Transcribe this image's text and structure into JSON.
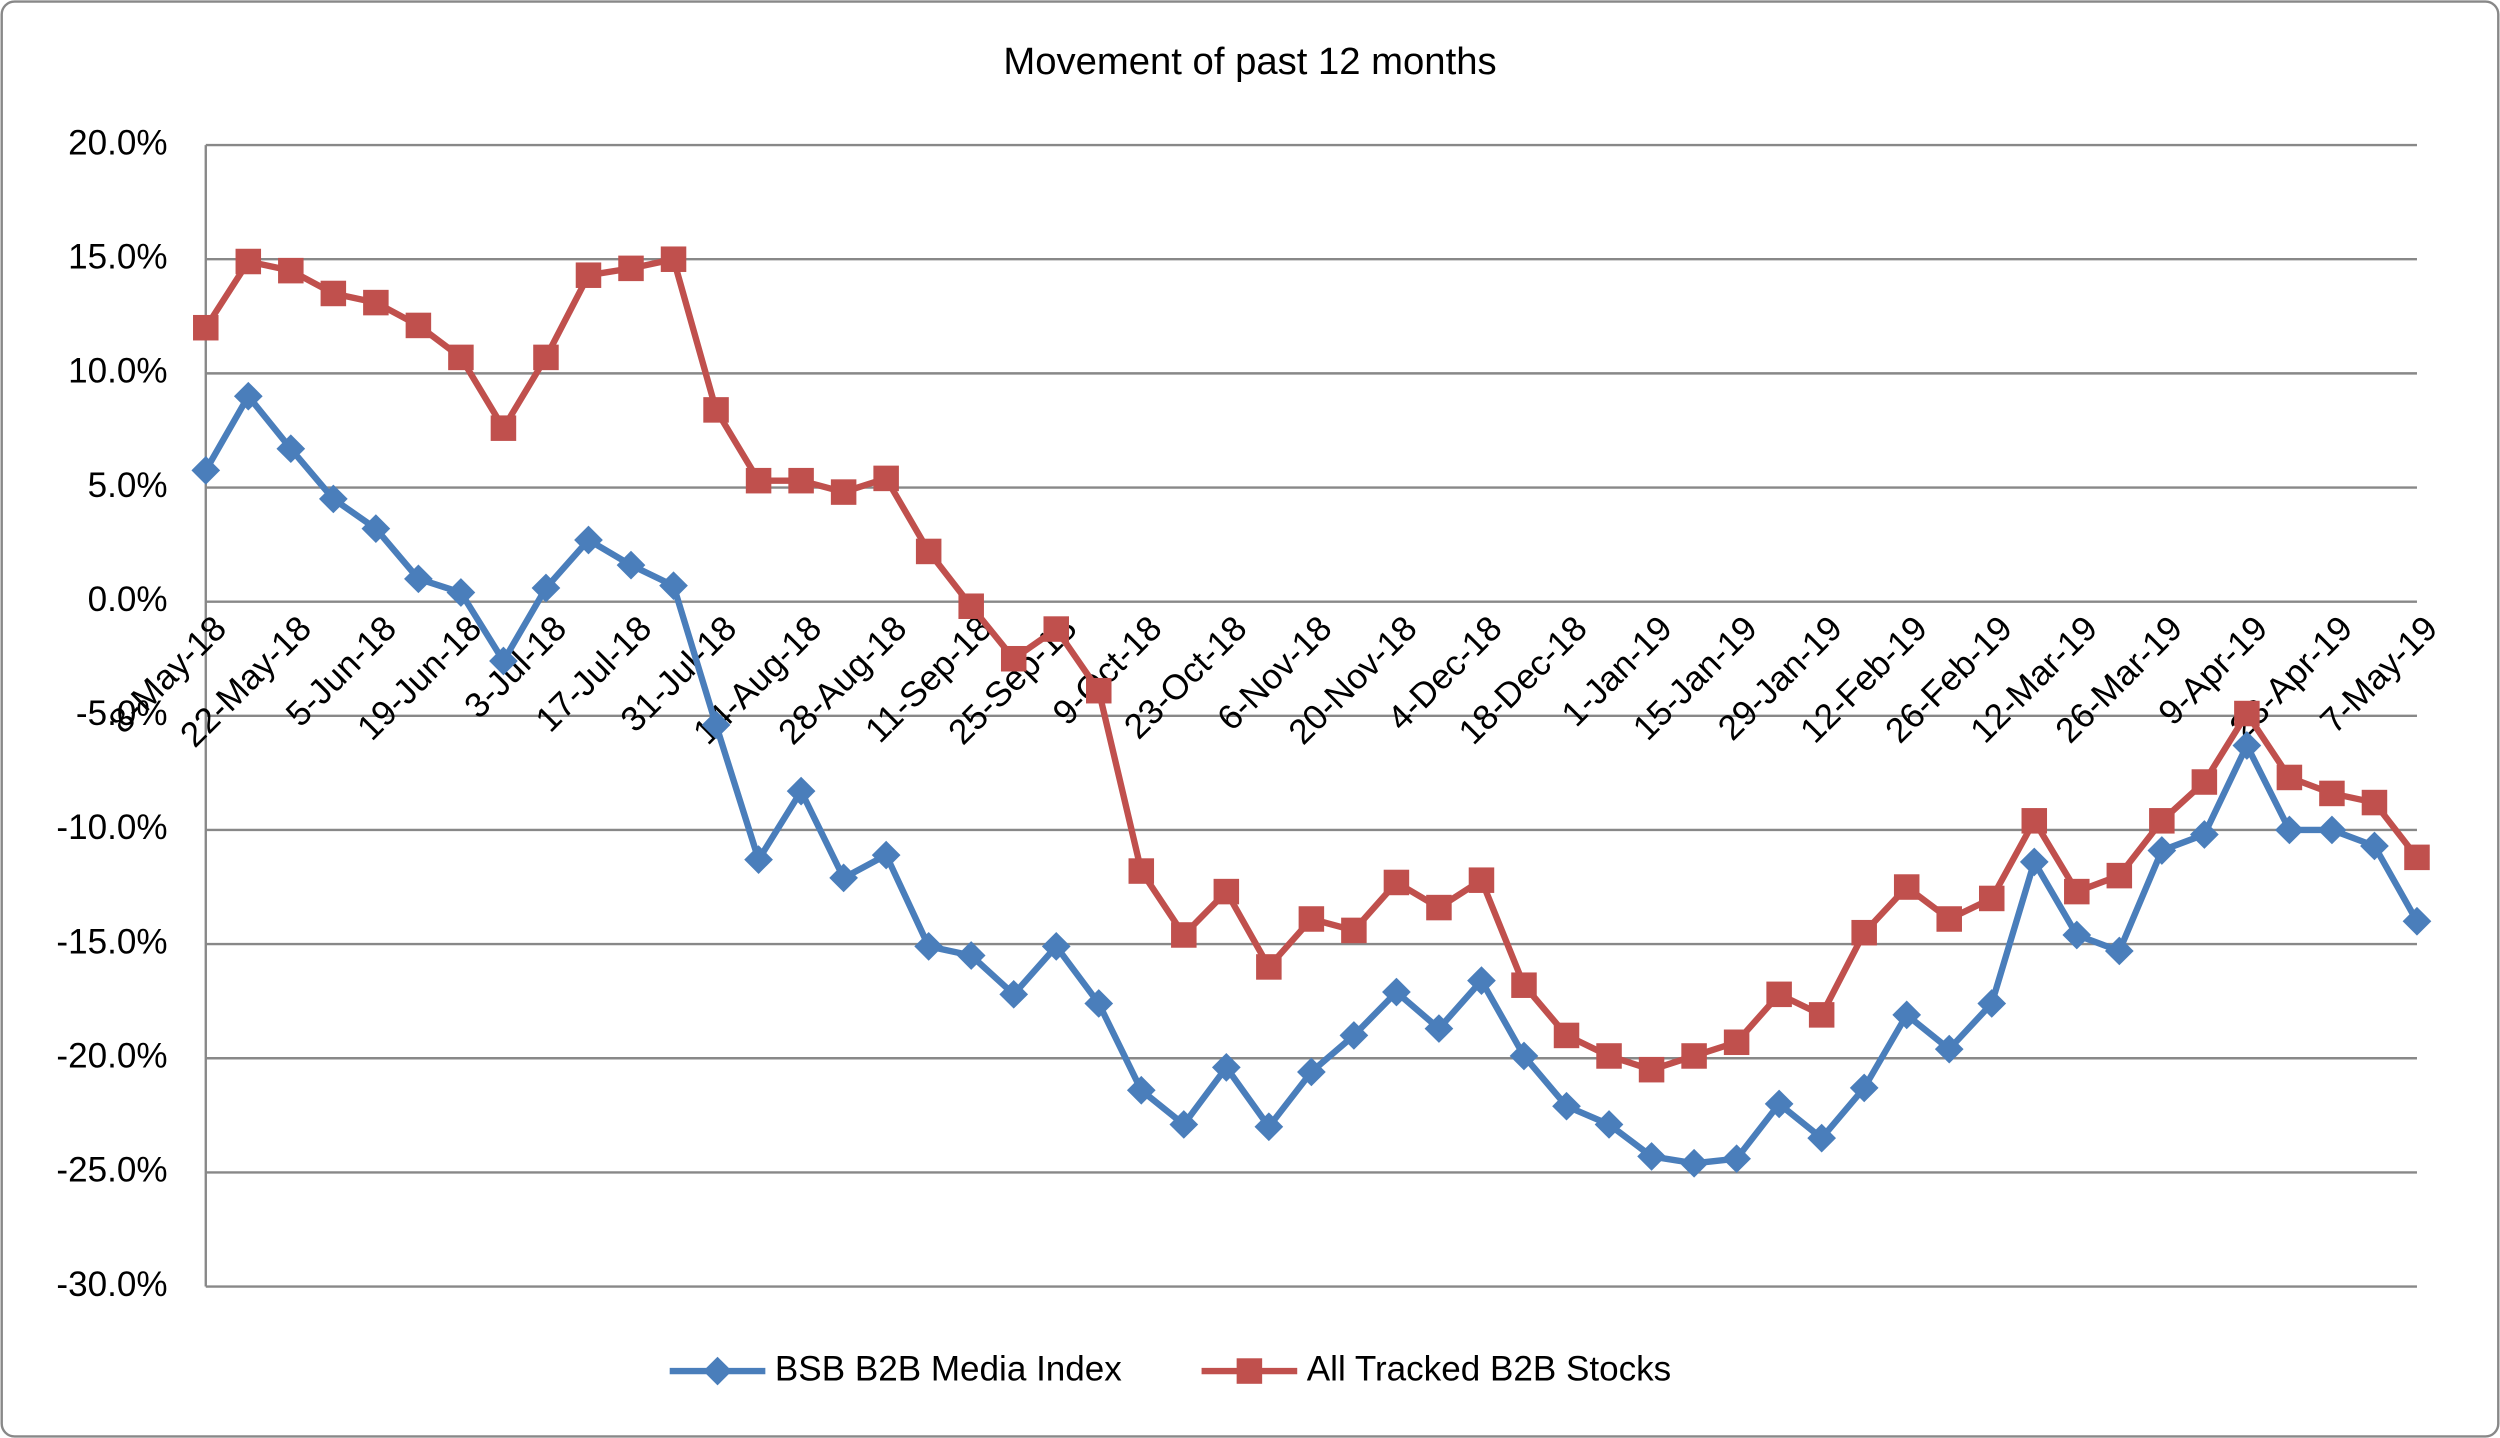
{
  "chart_data": {
    "type": "line",
    "title": "Movement of past 12 months",
    "categories": [
      "8-May-18",
      null,
      "22-May-18",
      null,
      "5-Jun-18",
      null,
      "19-Jun-18",
      null,
      "3-Jul-18",
      null,
      "17-Jul-18",
      null,
      "31-Jul-18",
      null,
      "14-Aug-18",
      null,
      "28-Aug-18",
      null,
      "11-Sep-18",
      null,
      "25-Sep-18",
      null,
      "9-Oct-18",
      null,
      "23-Oct-18",
      null,
      "6-Nov-18",
      null,
      "20-Nov-18",
      null,
      "4-Dec-18",
      null,
      "18-Dec-18",
      null,
      "1-Jan-19",
      null,
      "15-Jan-19",
      null,
      "29-Jan-19",
      null,
      "12-Feb-19",
      null,
      "26-Feb-19",
      null,
      "12-Mar-19",
      null,
      "26-Mar-19",
      null,
      "9-Apr-19",
      null,
      "23-Apr-19",
      null,
      "7-May-19"
    ],
    "series": [
      {
        "name": "BSB B2B Media Index",
        "color": "#4a7ebb",
        "marker": "diamond",
        "values": [
          5.75,
          9.0,
          6.7,
          4.5,
          3.2,
          1.0,
          0.4,
          -2.6,
          0.6,
          2.7,
          1.6,
          0.7,
          -5.4,
          -11.3,
          -8.3,
          -12.1,
          -11.1,
          -15.1,
          -15.5,
          -17.2,
          -15.1,
          -17.6,
          -21.4,
          -22.9,
          -20.4,
          -23.0,
          -20.6,
          -19.0,
          -17.1,
          -18.7,
          -16.6,
          -19.9,
          -22.1,
          -22.9,
          -24.3,
          -24.6,
          -24.4,
          -22.0,
          -23.5,
          -21.3,
          -18.1,
          -19.6,
          -17.6,
          -11.4,
          -14.6,
          -15.3,
          -10.9,
          -10.2,
          -6.3,
          -10.0,
          -10.0,
          -10.7,
          -14.0
        ]
      },
      {
        "name": "All Tracked B2B Stocks",
        "color": "#c0504d",
        "marker": "square",
        "values": [
          12.0,
          14.9,
          14.5,
          13.5,
          13.1,
          12.1,
          10.7,
          7.6,
          10.7,
          14.3,
          14.6,
          15.0,
          8.4,
          5.3,
          5.3,
          4.8,
          5.4,
          2.2,
          -0.2,
          -2.5,
          -1.2,
          -3.9,
          -11.8,
          -14.6,
          -12.7,
          -16.0,
          -13.9,
          -14.4,
          -12.3,
          -13.4,
          -12.2,
          -16.8,
          -19.0,
          -19.9,
          -20.5,
          -19.9,
          -19.3,
          -17.2,
          -18.1,
          -14.5,
          -12.5,
          -13.9,
          -13.0,
          -9.6,
          -12.7,
          -12.0,
          -9.6,
          -7.9,
          -4.9,
          -7.7,
          -8.4,
          -8.8,
          -11.2
        ]
      }
    ],
    "ylim": [
      -30,
      20
    ],
    "yticks": [
      {
        "value": -30,
        "label": "-30.0%"
      },
      {
        "value": -25,
        "label": "-25.0%"
      },
      {
        "value": -20,
        "label": "-20.0%"
      },
      {
        "value": -15,
        "label": "-15.0%"
      },
      {
        "value": -10,
        "label": "-10.0%"
      },
      {
        "value": -5,
        "label": "-5.0%"
      },
      {
        "value": 0,
        "label": "0.0%"
      },
      {
        "value": 5,
        "label": "5.0%"
      },
      {
        "value": 10,
        "label": "10.0%"
      },
      {
        "value": 15,
        "label": "15.0%"
      },
      {
        "value": 20,
        "label": "20.0%"
      }
    ],
    "grid": true,
    "legend": "bottom"
  }
}
